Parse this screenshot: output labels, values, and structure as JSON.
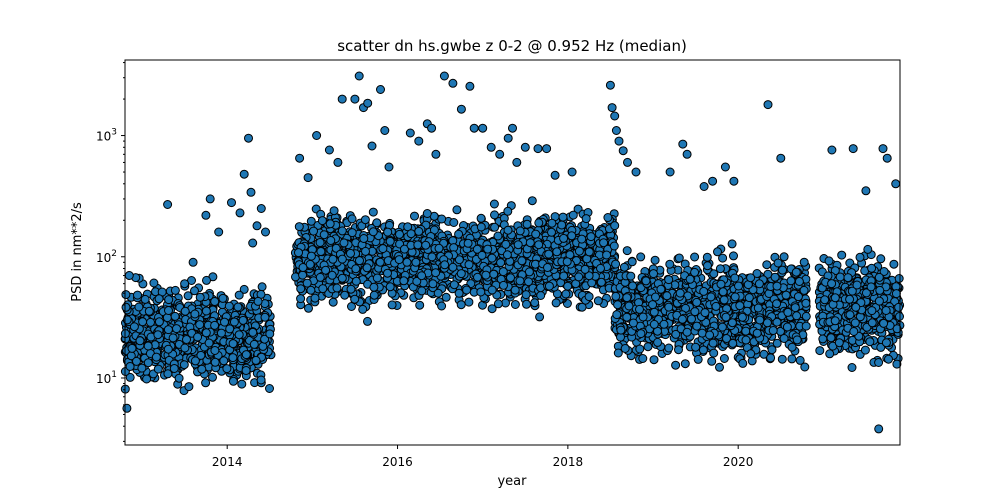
{
  "chart_data": {
    "type": "scatter",
    "title": "scatter dn hs.gwbe z 0-2 @ 0.952 Hz (median)",
    "xlabel": "year",
    "ylabel": "PSD in nm**2/s",
    "xlim": [
      2012.8,
      2021.9
    ],
    "ylim": [
      2.8,
      4200
    ],
    "yscale": "log",
    "grid": false,
    "legend": "none",
    "x_ticks": [
      2014,
      2016,
      2018,
      2020
    ],
    "y_ticks": [
      {
        "value": 10,
        "base": "10",
        "exp": "1"
      },
      {
        "value": 100,
        "base": "10",
        "exp": "2"
      },
      {
        "value": 1000,
        "base": "10",
        "exp": "3"
      }
    ],
    "marker_color": "#1f77b4",
    "marker_edge": "#000000",
    "segments": [
      {
        "start": 2012.8,
        "end": 2014.52,
        "median": 22,
        "spread": 0.22,
        "outliers": [
          [
            2012.85,
            70
          ],
          [
            2013.2,
            45
          ],
          [
            2013.3,
            270
          ],
          [
            2013.5,
            60
          ],
          [
            2013.6,
            90
          ],
          [
            2013.75,
            220
          ],
          [
            2013.8,
            300
          ],
          [
            2013.9,
            160
          ],
          [
            2014.05,
            280
          ],
          [
            2014.15,
            230
          ],
          [
            2014.2,
            480
          ],
          [
            2014.25,
            950
          ],
          [
            2014.28,
            340
          ],
          [
            2014.3,
            130
          ],
          [
            2014.35,
            180
          ],
          [
            2014.4,
            250
          ],
          [
            2014.45,
            160
          ]
        ]
      },
      {
        "start": 2014.8,
        "end": 2018.55,
        "median": 95,
        "spread": 0.2,
        "outliers": [
          [
            2014.85,
            650
          ],
          [
            2014.95,
            450
          ],
          [
            2015.05,
            1000
          ],
          [
            2015.2,
            760
          ],
          [
            2015.3,
            600
          ],
          [
            2015.35,
            2000
          ],
          [
            2015.5,
            2000
          ],
          [
            2015.55,
            3100
          ],
          [
            2015.6,
            1700
          ],
          [
            2015.65,
            1850
          ],
          [
            2015.7,
            820
          ],
          [
            2015.8,
            2400
          ],
          [
            2015.85,
            1100
          ],
          [
            2015.9,
            550
          ],
          [
            2016.15,
            1050
          ],
          [
            2016.25,
            900
          ],
          [
            2016.35,
            1250
          ],
          [
            2016.4,
            1150
          ],
          [
            2016.45,
            700
          ],
          [
            2016.55,
            3100
          ],
          [
            2016.65,
            2700
          ],
          [
            2016.75,
            1650
          ],
          [
            2016.85,
            2550
          ],
          [
            2016.9,
            1150
          ],
          [
            2017.0,
            1150
          ],
          [
            2017.1,
            800
          ],
          [
            2017.2,
            700
          ],
          [
            2017.3,
            950
          ],
          [
            2017.35,
            1150
          ],
          [
            2017.4,
            600
          ],
          [
            2017.5,
            800
          ],
          [
            2017.65,
            780
          ],
          [
            2017.75,
            780
          ],
          [
            2017.85,
            470
          ],
          [
            2018.05,
            500
          ]
        ]
      },
      {
        "start": 2018.55,
        "end": 2020.8,
        "median": 38,
        "spread": 0.24,
        "outliers": [
          [
            2018.5,
            2600
          ],
          [
            2018.52,
            1700
          ],
          [
            2018.55,
            1450
          ],
          [
            2018.57,
            1100
          ],
          [
            2018.6,
            900
          ],
          [
            2018.65,
            750
          ],
          [
            2018.7,
            600
          ],
          [
            2018.8,
            500
          ],
          [
            2019.2,
            500
          ],
          [
            2019.35,
            850
          ],
          [
            2019.4,
            700
          ],
          [
            2019.6,
            380
          ],
          [
            2019.7,
            420
          ],
          [
            2019.85,
            550
          ],
          [
            2019.95,
            420
          ],
          [
            2020.35,
            1800
          ],
          [
            2020.5,
            650
          ]
        ]
      },
      {
        "start": 2020.95,
        "end": 2021.9,
        "median": 38,
        "spread": 0.22,
        "outliers": [
          [
            2021.1,
            760
          ],
          [
            2021.35,
            780
          ],
          [
            2021.5,
            350
          ],
          [
            2021.7,
            780
          ],
          [
            2021.75,
            650
          ],
          [
            2021.85,
            400
          ],
          [
            2021.65,
            3.8
          ]
        ]
      }
    ]
  }
}
